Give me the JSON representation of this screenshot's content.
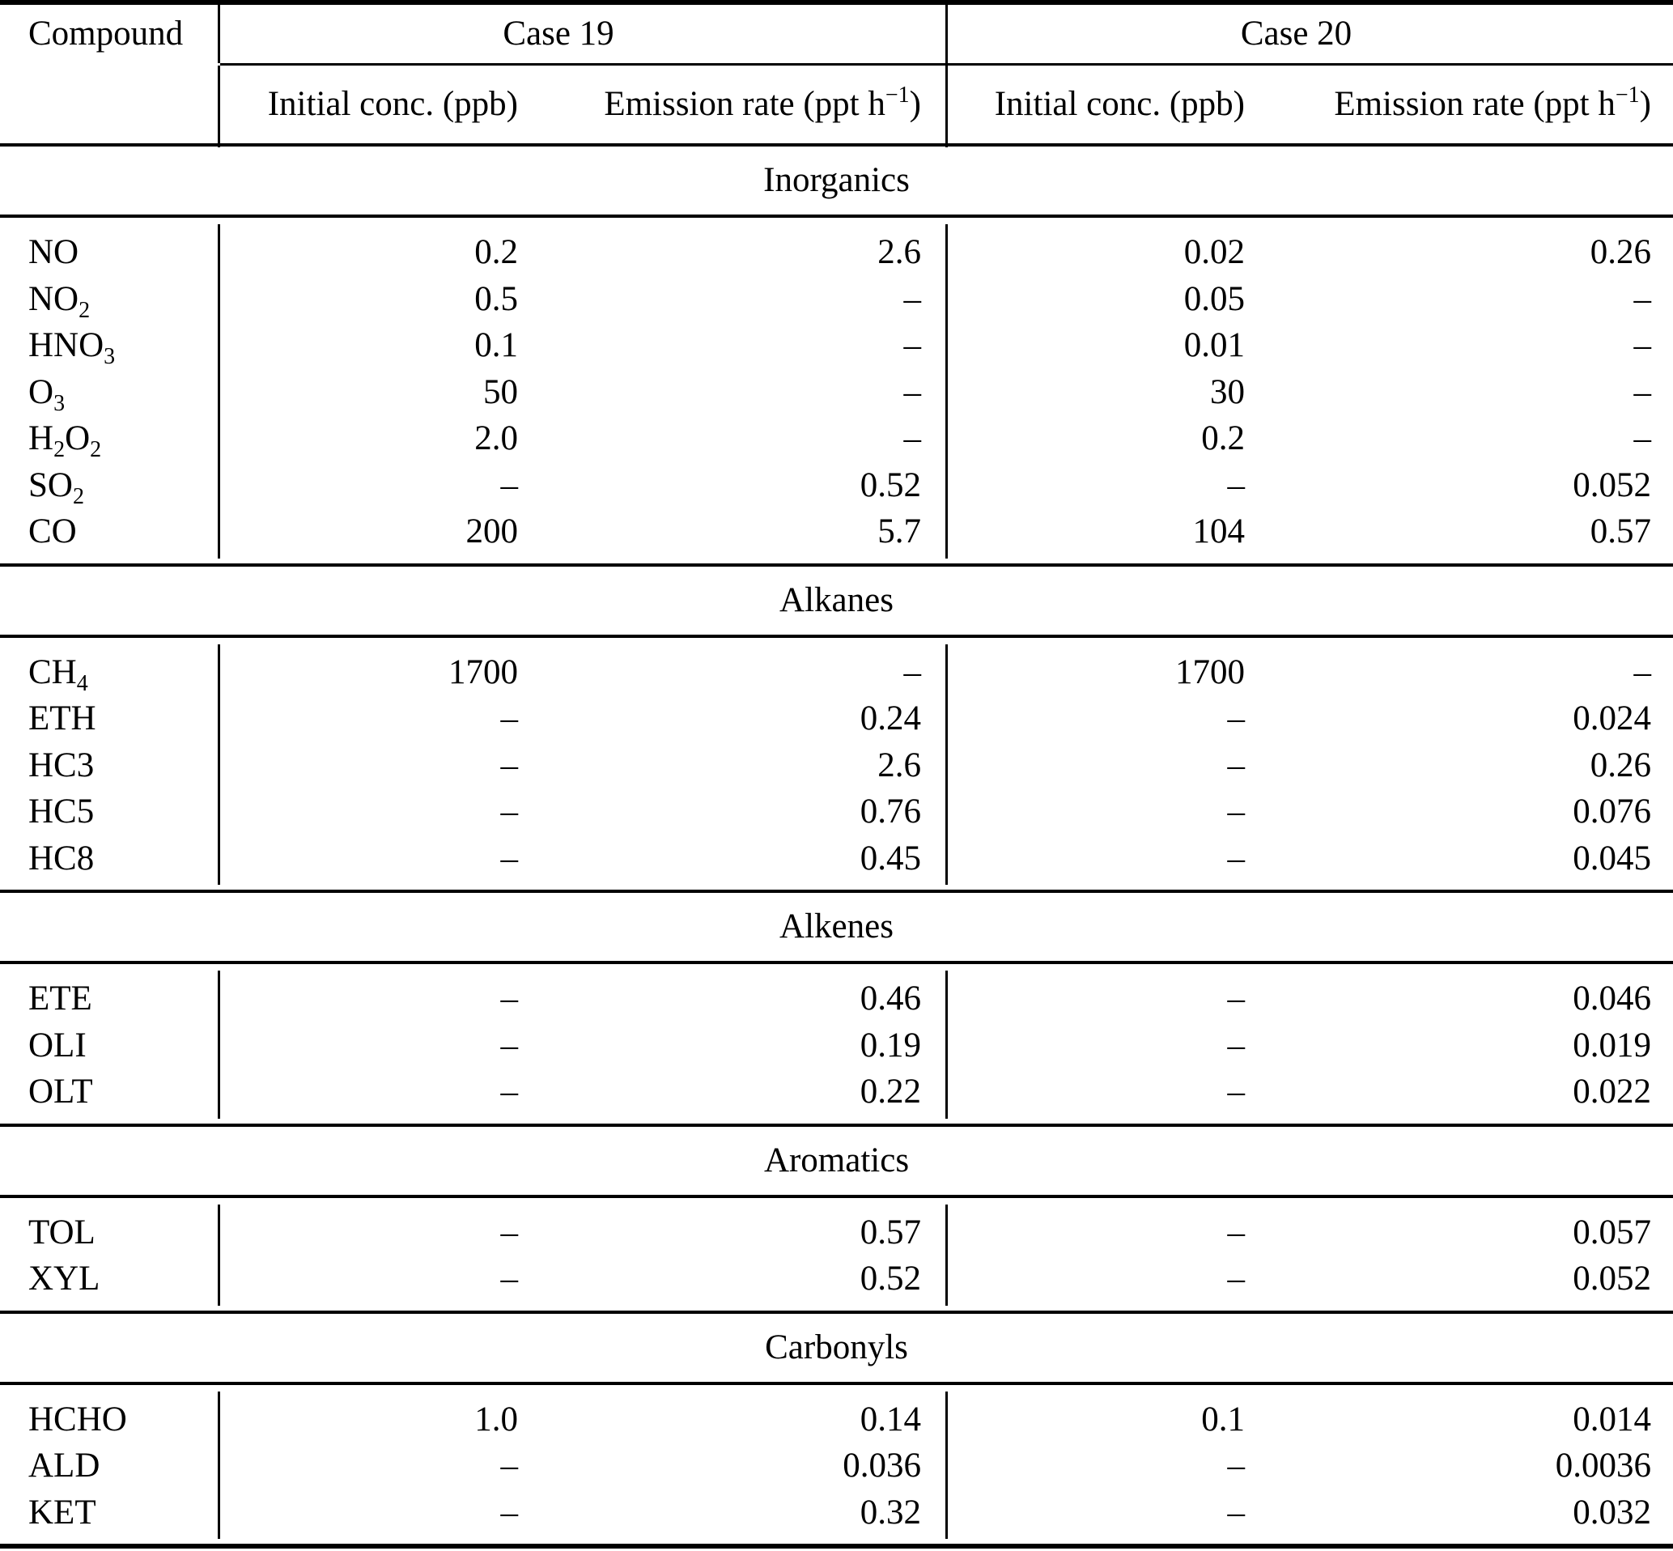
{
  "table": {
    "compound_header": "Compound",
    "groups": [
      {
        "label": "Case 19"
      },
      {
        "label": "Case 20"
      }
    ],
    "col_headers": {
      "initial": "Initial conc. (ppb)",
      "emission_pre": "Emission rate (ppt h",
      "emission_sup": "−1",
      "emission_post": ")"
    },
    "sections": [
      {
        "label": "Inorganics",
        "rows": [
          {
            "name": [
              {
                "text": "NO"
              }
            ],
            "c19_init": "0.2",
            "c19_emis": "2.6",
            "c20_init": "0.02",
            "c20_emis": "0.26"
          },
          {
            "name": [
              {
                "text": "NO"
              },
              {
                "text": "2",
                "sub": true
              }
            ],
            "c19_init": "0.5",
            "c19_emis": "–",
            "c20_init": "0.05",
            "c20_emis": "–"
          },
          {
            "name": [
              {
                "text": "HNO"
              },
              {
                "text": "3",
                "sub": true
              }
            ],
            "c19_init": "0.1",
            "c19_emis": "–",
            "c20_init": "0.01",
            "c20_emis": "–"
          },
          {
            "name": [
              {
                "text": "O"
              },
              {
                "text": "3",
                "sub": true
              }
            ],
            "c19_init": "50",
            "c19_emis": "–",
            "c20_init": "30",
            "c20_emis": "–"
          },
          {
            "name": [
              {
                "text": "H"
              },
              {
                "text": "2",
                "sub": true
              },
              {
                "text": "O"
              },
              {
                "text": "2",
                "sub": true
              }
            ],
            "c19_init": "2.0",
            "c19_emis": "–",
            "c20_init": "0.2",
            "c20_emis": "–"
          },
          {
            "name": [
              {
                "text": "SO"
              },
              {
                "text": "2",
                "sub": true
              }
            ],
            "c19_init": "–",
            "c19_emis": "0.52",
            "c20_init": "–",
            "c20_emis": "0.052"
          },
          {
            "name": [
              {
                "text": "CO"
              }
            ],
            "c19_init": "200",
            "c19_emis": "5.7",
            "c20_init": "104",
            "c20_emis": "0.57"
          }
        ]
      },
      {
        "label": "Alkanes",
        "rows": [
          {
            "name": [
              {
                "text": "CH"
              },
              {
                "text": "4",
                "sub": true
              }
            ],
            "c19_init": "1700",
            "c19_emis": "–",
            "c20_init": "1700",
            "c20_emis": "–"
          },
          {
            "name": [
              {
                "text": "ETH"
              }
            ],
            "c19_init": "–",
            "c19_emis": "0.24",
            "c20_init": "–",
            "c20_emis": "0.024"
          },
          {
            "name": [
              {
                "text": "HC3"
              }
            ],
            "c19_init": "–",
            "c19_emis": "2.6",
            "c20_init": "–",
            "c20_emis": "0.26"
          },
          {
            "name": [
              {
                "text": "HC5"
              }
            ],
            "c19_init": "–",
            "c19_emis": "0.76",
            "c20_init": "–",
            "c20_emis": "0.076"
          },
          {
            "name": [
              {
                "text": "HC8"
              }
            ],
            "c19_init": "–",
            "c19_emis": "0.45",
            "c20_init": "–",
            "c20_emis": "0.045"
          }
        ]
      },
      {
        "label": "Alkenes",
        "rows": [
          {
            "name": [
              {
                "text": "ETE"
              }
            ],
            "c19_init": "–",
            "c19_emis": "0.46",
            "c20_init": "–",
            "c20_emis": "0.046"
          },
          {
            "name": [
              {
                "text": "OLI"
              }
            ],
            "c19_init": "–",
            "c19_emis": "0.19",
            "c20_init": "–",
            "c20_emis": "0.019"
          },
          {
            "name": [
              {
                "text": "OLT"
              }
            ],
            "c19_init": "–",
            "c19_emis": "0.22",
            "c20_init": "–",
            "c20_emis": "0.022"
          }
        ]
      },
      {
        "label": "Aromatics",
        "rows": [
          {
            "name": [
              {
                "text": "TOL"
              }
            ],
            "c19_init": "–",
            "c19_emis": "0.57",
            "c20_init": "–",
            "c20_emis": "0.057"
          },
          {
            "name": [
              {
                "text": "XYL"
              }
            ],
            "c19_init": "–",
            "c19_emis": "0.52",
            "c20_init": "–",
            "c20_emis": "0.052"
          }
        ]
      },
      {
        "label": "Carbonyls",
        "rows": [
          {
            "name": [
              {
                "text": "HCHO"
              }
            ],
            "c19_init": "1.0",
            "c19_emis": "0.14",
            "c20_init": "0.1",
            "c20_emis": "0.014"
          },
          {
            "name": [
              {
                "text": "ALD"
              }
            ],
            "c19_init": "–",
            "c19_emis": "0.036",
            "c20_init": "–",
            "c20_emis": "0.0036"
          },
          {
            "name": [
              {
                "text": "KET"
              }
            ],
            "c19_init": "–",
            "c19_emis": "0.32",
            "c20_init": "–",
            "c20_emis": "0.032"
          }
        ]
      }
    ]
  }
}
